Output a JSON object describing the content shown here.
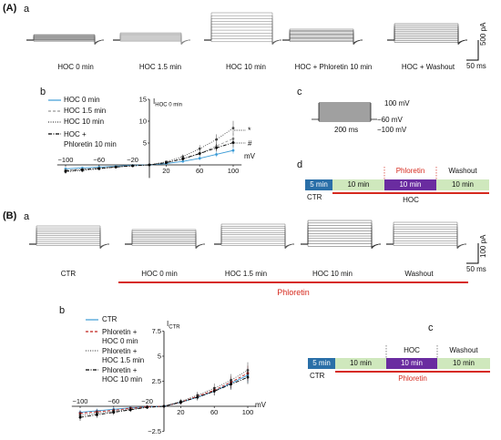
{
  "panelA": {
    "label": "(A)",
    "sub_a": "a",
    "sub_b": "b",
    "sub_c": "c",
    "sub_d": "d",
    "traces": [
      "HOC 0 min",
      "HOC 1.5 min",
      "HOC 10 min",
      "HOC + Phloretin 10 min",
      "HOC + Washout"
    ],
    "scale_y": "500 pA",
    "scale_x": "50 ms",
    "iv_ylabel": "I",
    "iv_ylabel_sub": "HOC 0 min",
    "star": "*",
    "hash": "#",
    "protocol": {
      "top": "100 mV",
      "mid": "−60 mV",
      "bot": "−100 mV",
      "dur": "200 ms"
    },
    "timeline": {
      "ctr_box": "5 min",
      "seg2": "10 min",
      "seg3": "10 min",
      "seg4": "10 min",
      "drug": "Phloretin",
      "washout": "Washout",
      "ctr": "CTR",
      "bar": "HOC"
    }
  },
  "panelB": {
    "label": "(B)",
    "sub_a": "a",
    "sub_b": "b",
    "sub_c": "c",
    "traces": [
      "CTR",
      "HOC 0 min",
      "HOC 1.5 min",
      "HOC 10 min",
      "Washout"
    ],
    "phloretin_bar": "Phloretin",
    "scale_y": "100 pA",
    "scale_x": "50 ms",
    "iv_ylabel": "I",
    "iv_ylabel_sub": "CTR",
    "timeline": {
      "ctr_box": "5 min",
      "seg2": "10 min",
      "seg3": "10 min",
      "seg4": "10 min",
      "drug": "HOC",
      "washout": "Washout",
      "ctr": "CTR",
      "bar": "Phloretin"
    }
  },
  "colors": {
    "blue": "#3b9bd6",
    "green": "#cfe8bd",
    "purple": "#6a2ca0",
    "red": "#d62a1e",
    "box_blue": "#2a6fa8"
  },
  "chart_data": [
    {
      "type": "line",
      "xlabel": "mV",
      "ylabel": "I HOC 0 min",
      "x": [
        -100,
        -80,
        -60,
        -40,
        -20,
        0,
        20,
        40,
        60,
        80,
        100
      ],
      "xticks": [
        -100,
        -60,
        -20,
        20,
        60,
        100
      ],
      "yticks": [
        5,
        10,
        15
      ],
      "ylim": [
        -3,
        15
      ],
      "series": [
        {
          "name": "HOC 0 min",
          "values": [
            -0.9,
            -0.7,
            -0.5,
            -0.3,
            -0.1,
            0,
            0.3,
            0.8,
            1.5,
            2.4,
            3.3
          ]
        },
        {
          "name": "HOC 1.5 min",
          "values": [
            -1.2,
            -1.0,
            -0.7,
            -0.4,
            -0.2,
            0,
            0.5,
            1.3,
            2.6,
            4.3,
            6.0
          ]
        },
        {
          "name": "HOC 10 min",
          "values": [
            -1.6,
            -1.3,
            -0.9,
            -0.5,
            -0.2,
            0,
            0.7,
            1.9,
            3.7,
            5.8,
            8.4
          ]
        },
        {
          "name": "HOC + Phloretin 10 min",
          "values": [
            -1.4,
            -1.1,
            -0.8,
            -0.5,
            -0.2,
            0,
            0.5,
            1.4,
            2.6,
            3.9,
            5.1
          ]
        }
      ]
    },
    {
      "type": "line",
      "xlabel": "mV",
      "ylabel": "I CTR",
      "x": [
        -100,
        -80,
        -60,
        -40,
        -20,
        0,
        20,
        40,
        60,
        80,
        100
      ],
      "xticks": [
        -100,
        -60,
        -20,
        20,
        60,
        100
      ],
      "yticks": [
        -2.5,
        2.5,
        5.0,
        7.5
      ],
      "ylim": [
        -2.5,
        7.5
      ],
      "series": [
        {
          "name": "CTR",
          "values": [
            -0.6,
            -0.45,
            -0.3,
            -0.15,
            -0.05,
            0,
            0.4,
            0.9,
            1.5,
            2.3,
            3.1
          ]
        },
        {
          "name": "Phloretin + HOC 0 min",
          "values": [
            -0.7,
            -0.55,
            -0.4,
            -0.2,
            -0.05,
            0,
            0.4,
            1.0,
            1.6,
            2.4,
            3.3
          ]
        },
        {
          "name": "Phloretin + HOC 1.5 min",
          "values": [
            -0.9,
            -0.7,
            -0.5,
            -0.3,
            -0.1,
            0,
            0.5,
            1.1,
            1.8,
            2.6,
            3.6
          ]
        },
        {
          "name": "Phloretin + HOC 10 min",
          "values": [
            -1.1,
            -0.85,
            -0.6,
            -0.35,
            -0.1,
            0,
            0.4,
            0.9,
            1.5,
            2.2,
            2.9
          ]
        }
      ]
    }
  ]
}
